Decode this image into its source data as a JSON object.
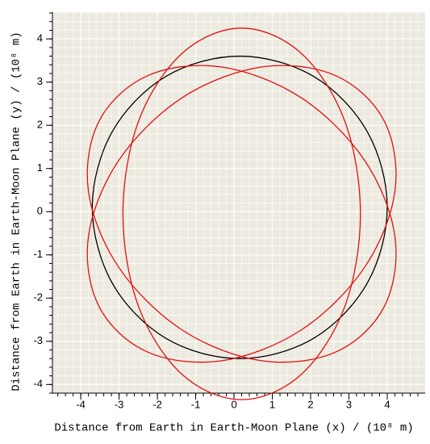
{
  "chart_data": {
    "type": "line",
    "x_label": "Distance from Earth in Earth-Moon Plane (x) / (10⁸ m)",
    "y_label": "Distance from Earth in Earth-Moon Plane (y) / (10⁸ m)",
    "xlim": [
      -4.74,
      4.99
    ],
    "ylim": [
      -4.2,
      4.62
    ],
    "xticks": [
      -4,
      -3,
      -2,
      -1,
      0,
      1,
      2,
      3,
      4
    ],
    "yticks": [
      -4,
      -3,
      -2,
      -1,
      0,
      1,
      2,
      3,
      4
    ],
    "grid": true,
    "series": [
      {
        "color": "#000000",
        "x": [
          4.0,
          3.48,
          2.08,
          0.15,
          -1.78,
          -3.18,
          -3.7,
          -3.18,
          -1.78,
          0.15,
          2.08,
          3.48
        ],
        "values": [
          0.1,
          1.85,
          3.13,
          3.6,
          3.13,
          1.85,
          0.1,
          -1.65,
          -2.93,
          -3.4,
          -2.93,
          -1.65
        ]
      },
      {
        "color": "#e01010",
        "x": [
          0.2,
          -1.35,
          -2.49,
          -2.9,
          -2.49,
          -1.35,
          0.2,
          1.75,
          2.89,
          3.3,
          2.89,
          1.75
        ],
        "values": [
          4.25,
          3.67,
          2.1,
          -0.05,
          -2.2,
          -3.77,
          -4.35,
          -3.77,
          -2.2,
          -0.05,
          2.1,
          3.67
        ]
      },
      {
        "color": "#e01010",
        "x": [
          3.92,
          2.65,
          0.72,
          -1.35,
          -3.0,
          -3.8,
          -3.52,
          -2.25,
          -0.32,
          1.75,
          3.4,
          4.2
        ],
        "values": [
          2.1,
          3.15,
          3.35,
          2.64,
          1.2,
          -0.57,
          -2.2,
          -3.25,
          -3.45,
          -2.74,
          -1.3,
          0.47
        ]
      },
      {
        "color": "#e01010",
        "x": [
          3.92,
          4.2,
          3.4,
          1.75,
          -0.32,
          -2.25,
          -3.52,
          -3.8,
          -3.0,
          -1.35,
          0.72,
          2.65
        ],
        "values": [
          -2.2,
          -0.57,
          1.2,
          2.64,
          3.35,
          3.15,
          2.1,
          0.47,
          -1.3,
          -2.74,
          -3.45,
          -3.25
        ]
      }
    ]
  }
}
